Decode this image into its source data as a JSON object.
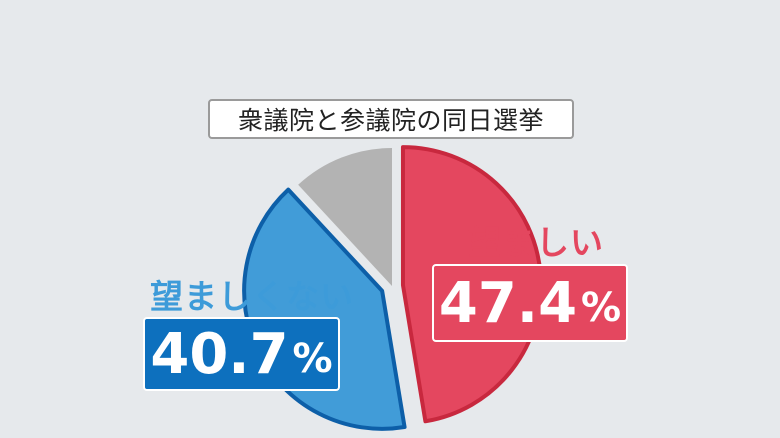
{
  "chart_data": {
    "type": "pie",
    "title": "衆議院と参議院の同日選挙",
    "slices": [
      {
        "label": "望ましい",
        "value": 47.4,
        "value_text": "47.4",
        "unit": "%",
        "color": "#e4475f",
        "edge": "#c8283e"
      },
      {
        "label": "望ましくない",
        "value": 40.7,
        "value_text": "40.7",
        "unit": "%",
        "color": "#419cd8",
        "edge": "#0d5fa8"
      },
      {
        "label": "",
        "value": 11.9,
        "value_text": "",
        "unit": "",
        "color": "#b3b3b3",
        "edge": "#b3b3b3"
      }
    ],
    "start": "12 o'clock",
    "direction": "clockwise",
    "legend": "none"
  }
}
